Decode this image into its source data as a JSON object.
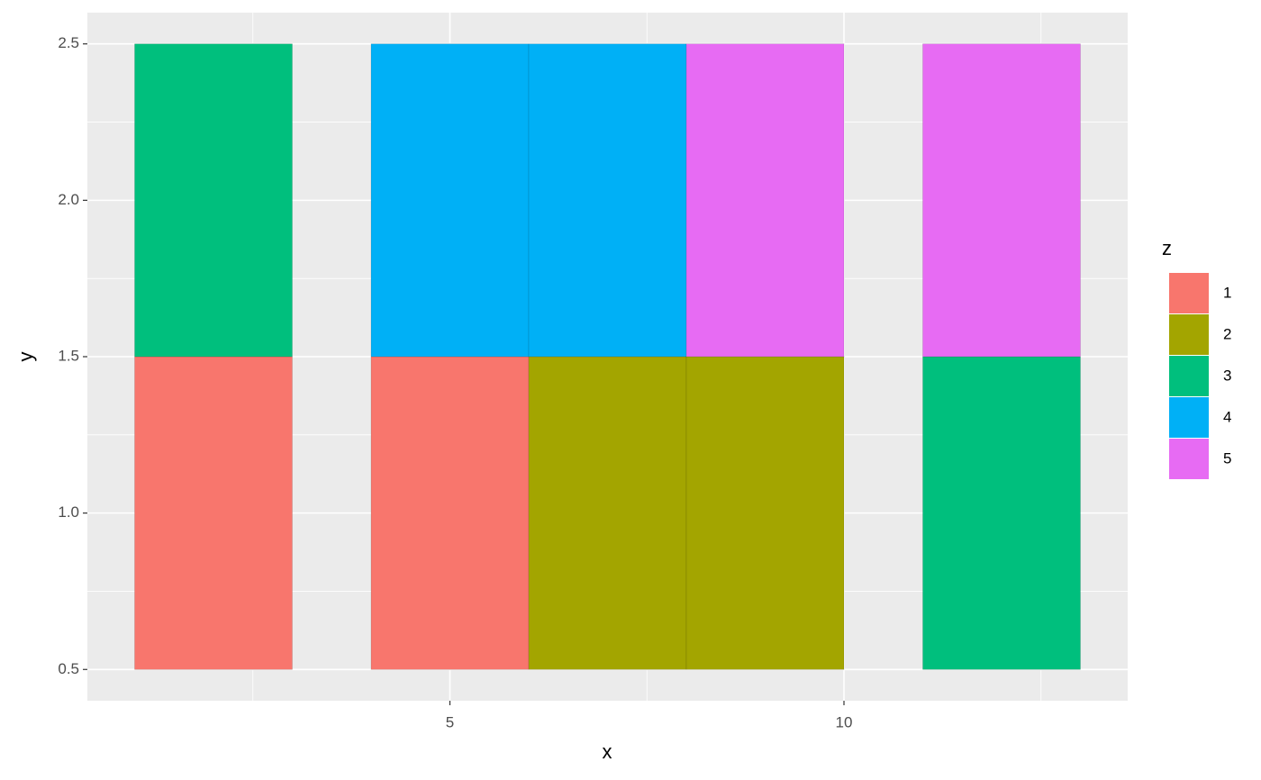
{
  "chart_data": {
    "type": "rect",
    "x_label": "x",
    "y_label": "y",
    "legend_title": "z",
    "xlim": [
      0.4,
      13.6
    ],
    "ylim": [
      0.4,
      2.6
    ],
    "xticks": [
      5,
      10
    ],
    "yticks": [
      0.5,
      {
        "value": 1,
        "label": "1.0"
      },
      1.5,
      {
        "value": 2,
        "label": "2.0"
      },
      2.5
    ],
    "grid": true,
    "legend_position": "right",
    "series": [
      {
        "name": "1",
        "color": "#F8766D",
        "xmin": [
          1,
          4
        ],
        "xmax": [
          3,
          6
        ],
        "ymin": [
          0.5,
          0.5
        ],
        "ymax": [
          1.5,
          1.5
        ]
      },
      {
        "name": "2",
        "color": "#A3A500",
        "xmin": [
          6,
          8
        ],
        "xmax": [
          8,
          10
        ],
        "ymin": [
          0.5,
          0.5
        ],
        "ymax": [
          1.5,
          1.5
        ]
      },
      {
        "name": "3",
        "color": "#00BF7D",
        "xmin": [
          1,
          11
        ],
        "xmax": [
          3,
          13
        ],
        "ymin": [
          1.5,
          0.5
        ],
        "ymax": [
          2.5,
          1.5
        ]
      },
      {
        "name": "4",
        "color": "#00B0F6",
        "xmin": [
          4,
          6
        ],
        "xmax": [
          6,
          8
        ],
        "ymin": [
          1.5,
          1.5
        ],
        "ymax": [
          2.5,
          2.5
        ]
      },
      {
        "name": "5",
        "color": "#E76BF3",
        "xmin": [
          8,
          11
        ],
        "xmax": [
          10,
          13
        ],
        "ymin": [
          1.5,
          1.5
        ],
        "ymax": [
          2.5,
          2.5
        ]
      }
    ]
  }
}
